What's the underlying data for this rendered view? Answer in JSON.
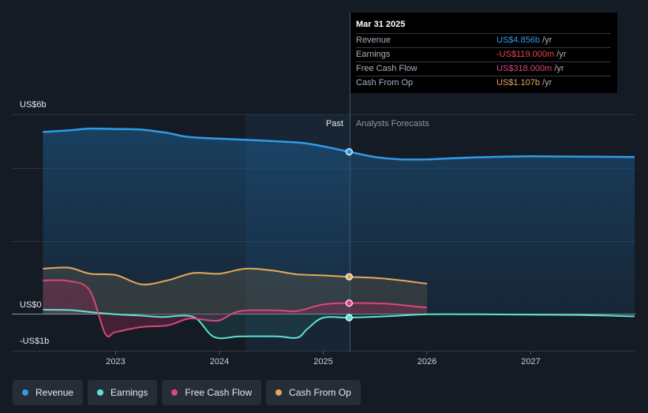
{
  "chart_data": {
    "type": "line",
    "y_axis": {
      "top_label": "US$6b",
      "zero_label": "US$0",
      "bottom_label": "-US$1b",
      "ylim": [
        -1,
        6
      ]
    },
    "x_ticks": [
      "2023",
      "2024",
      "2025",
      "2026",
      "2027"
    ],
    "past_label": "Past",
    "forecast_label": "Analysts Forecasts",
    "divider_date": 2025.25,
    "series": [
      {
        "name": "Revenue",
        "color": "#2f9be8",
        "x": [
          2022.3,
          2022.55,
          2022.75,
          2023.0,
          2023.25,
          2023.5,
          2023.7,
          2024.0,
          2024.3,
          2024.55,
          2024.8,
          2025.0,
          2025.25,
          2025.5,
          2025.75,
          2026.0,
          2026.3,
          2026.6,
          2027.0,
          2027.5,
          2028.0
        ],
        "y": [
          5.45,
          5.5,
          5.55,
          5.54,
          5.52,
          5.42,
          5.3,
          5.25,
          5.21,
          5.17,
          5.12,
          5.02,
          4.856,
          4.7,
          4.63,
          4.63,
          4.67,
          4.7,
          4.72,
          4.71,
          4.7
        ]
      },
      {
        "name": "Earnings",
        "color": "#5ee0d4",
        "x": [
          2022.3,
          2022.55,
          2022.75,
          2023.0,
          2023.25,
          2023.45,
          2023.75,
          2023.95,
          2024.2,
          2024.55,
          2024.75,
          2024.85,
          2025.0,
          2025.25,
          2025.6,
          2026.0,
          2026.5,
          2027.0,
          2027.5,
          2028.0
        ],
        "y": [
          0.12,
          0.11,
          0.05,
          -0.02,
          -0.06,
          -0.1,
          -0.1,
          -0.7,
          -0.68,
          -0.68,
          -0.72,
          -0.45,
          -0.12,
          -0.119,
          -0.08,
          -0.02,
          -0.02,
          -0.03,
          -0.04,
          -0.08
        ]
      },
      {
        "name": "Free Cash Flow",
        "color": "#d8477e",
        "x": [
          2022.3,
          2022.55,
          2022.75,
          2022.9,
          2023.0,
          2023.25,
          2023.5,
          2023.7,
          2023.85,
          2024.0,
          2024.2,
          2024.55,
          2024.75,
          2025.0,
          2025.25,
          2025.6,
          2026.0
        ],
        "y": [
          1.0,
          0.98,
          0.7,
          -0.6,
          -0.55,
          -0.4,
          -0.35,
          -0.15,
          -0.18,
          -0.2,
          0.08,
          0.1,
          0.08,
          0.28,
          0.318,
          0.3,
          0.18
        ]
      },
      {
        "name": "Cash From Op",
        "color": "#e5a95a",
        "x": [
          2022.3,
          2022.55,
          2022.75,
          2023.0,
          2023.25,
          2023.5,
          2023.75,
          2024.0,
          2024.25,
          2024.5,
          2024.75,
          2025.0,
          2025.25,
          2025.6,
          2026.0
        ],
        "y": [
          1.35,
          1.38,
          1.2,
          1.16,
          0.88,
          1.0,
          1.22,
          1.2,
          1.35,
          1.3,
          1.18,
          1.15,
          1.107,
          1.05,
          0.9
        ]
      }
    ],
    "highlight_markers": [
      {
        "series": "Revenue",
        "x": 2025.25,
        "y": 4.856
      },
      {
        "series": "Cash From Op",
        "x": 2025.25,
        "y": 1.107
      },
      {
        "series": "Free Cash Flow",
        "x": 2025.25,
        "y": 0.318
      },
      {
        "series": "Earnings",
        "x": 2025.25,
        "y": -0.119
      }
    ]
  },
  "tooltip": {
    "date": "Mar 31 2025",
    "rows": [
      {
        "label": "Revenue",
        "value": "US$4.856b",
        "unit": "/yr",
        "color": "#2f9be8"
      },
      {
        "label": "Earnings",
        "value": "-US$119.000m",
        "unit": "/yr",
        "color": "#e8454b"
      },
      {
        "label": "Free Cash Flow",
        "value": "US$318.000m",
        "unit": "/yr",
        "color": "#d8477e"
      },
      {
        "label": "Cash From Op",
        "value": "US$1.107b",
        "unit": "/yr",
        "color": "#e5a95a"
      }
    ]
  },
  "legend": [
    {
      "label": "Revenue",
      "color": "#2f9be8"
    },
    {
      "label": "Earnings",
      "color": "#5ee0d4"
    },
    {
      "label": "Free Cash Flow",
      "color": "#d8477e"
    },
    {
      "label": "Cash From Op",
      "color": "#e5a95a"
    }
  ]
}
